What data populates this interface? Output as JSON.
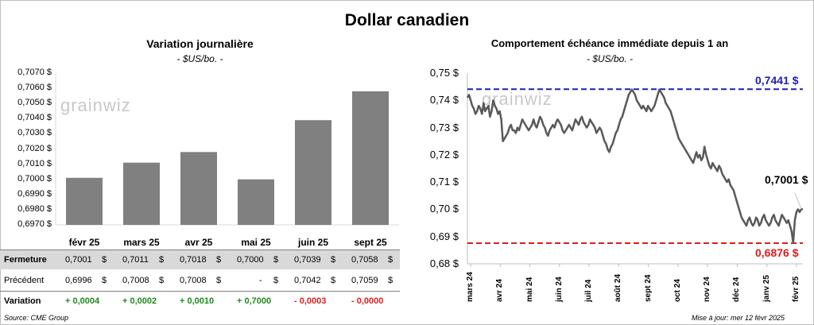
{
  "title": "Dollar canadien",
  "left": {
    "title": "Variation  journalière",
    "unit": "- $US/bo. -",
    "watermark": "grainwiz",
    "y_ticks": [
      "0,7070 $",
      "0,7060 $",
      "0,7050 $",
      "0,7040 $",
      "0,7030 $",
      "0,7020 $",
      "0,7010 $",
      "0,7000 $",
      "0,6990 $",
      "0,6980 $",
      "0,6970 $"
    ],
    "table": {
      "row_labels": [
        "Fermeture",
        "Précédent",
        "Variation"
      ],
      "fermeture": [
        "0,7001",
        "0,7011",
        "0,7018",
        "0,7000",
        "0,7039",
        "0,7058"
      ],
      "precedent": [
        "0,6996",
        "0,7008",
        "0,7008",
        "-",
        "0,7042",
        "0,7059"
      ],
      "variation": [
        "+ 0,0004",
        "+ 0,0002",
        "+ 0,0010",
        "+ 0,7000",
        "- 0,0003",
        "- 0,0000"
      ],
      "currency": "$"
    },
    "source": "Source: CME Group"
  },
  "right": {
    "title": "Comportement échéance immédiate depuis 1 an",
    "unit": "- $US/bo. -",
    "watermark": "grainwiz",
    "y_ticks": [
      "0,75 $",
      "0,74 $",
      "0,73 $",
      "0,72 $",
      "0,71 $",
      "0,70 $",
      "0,69 $",
      "0,68 $"
    ],
    "x_ticks": [
      "mars 24",
      "avr 24",
      "mai 24",
      "juin 24",
      "juil 24",
      "août 24",
      "sept 24",
      "oct 24",
      "nov 24",
      "déc 24",
      "janv 25",
      "févr 25"
    ],
    "high_label": "0,7441 $",
    "low_label": "0,6876 $",
    "last_label": "0,7001 $",
    "updated": "Mise à jour: mer 12 févr 2025"
  },
  "chart_data": [
    {
      "type": "bar",
      "title": "Variation  journalière",
      "categories": [
        "févr 25",
        "mars 25",
        "avr 25",
        "mai 25",
        "juin 25",
        "sept 25"
      ],
      "values": [
        0.7001,
        0.7011,
        0.7018,
        0.7,
        0.7039,
        0.7058
      ],
      "ylim": [
        0.697,
        0.707
      ],
      "color": "#808080"
    },
    {
      "type": "line",
      "title": "Comportement échéance immédiate depuis 1 an",
      "ylim": [
        0.68,
        0.75
      ],
      "reference_lines": [
        {
          "value": 0.7441,
          "color": "#1f1fb4"
        },
        {
          "value": 0.6876,
          "color": "#e01b1b"
        }
      ],
      "color": "#595959",
      "series": [
        {
          "values": [
            0.741,
            0.742,
            0.74,
            0.738,
            0.737,
            0.735,
            0.736,
            0.738,
            0.737,
            0.735,
            0.739,
            0.736,
            0.737,
            0.738,
            0.734,
            0.736,
            0.74,
            0.738,
            0.737,
            0.735,
            0.736,
            0.733,
            0.725,
            0.726,
            0.727,
            0.728,
            0.73,
            0.731,
            0.729,
            0.729,
            0.728,
            0.73,
            0.729,
            0.731,
            0.733,
            0.732,
            0.731,
            0.73,
            0.729,
            0.73,
            0.731,
            0.733,
            0.731,
            0.73,
            0.732,
            0.734,
            0.733,
            0.731,
            0.73,
            0.728,
            0.727,
            0.729,
            0.73,
            0.731,
            0.73,
            0.732,
            0.733,
            0.732,
            0.731,
            0.729,
            0.728,
            0.729,
            0.73,
            0.731,
            0.73,
            0.729,
            0.731,
            0.733,
            0.732,
            0.731,
            0.733,
            0.734,
            0.732,
            0.731,
            0.73,
            0.731,
            0.733,
            0.732,
            0.731,
            0.73,
            0.728,
            0.729,
            0.73,
            0.729,
            0.727,
            0.725,
            0.724,
            0.722,
            0.721,
            0.723,
            0.724,
            0.726,
            0.728,
            0.729,
            0.731,
            0.733,
            0.734,
            0.736,
            0.738,
            0.74,
            0.742,
            0.743,
            0.744,
            0.743,
            0.742,
            0.74,
            0.739,
            0.738,
            0.737,
            0.738,
            0.737,
            0.736,
            0.738,
            0.737,
            0.736,
            0.737,
            0.738,
            0.74,
            0.742,
            0.744,
            0.743,
            0.742,
            0.741,
            0.739,
            0.738,
            0.737,
            0.736,
            0.734,
            0.732,
            0.73,
            0.728,
            0.726,
            0.725,
            0.724,
            0.723,
            0.722,
            0.721,
            0.72,
            0.719,
            0.718,
            0.717,
            0.719,
            0.721,
            0.719,
            0.72,
            0.718,
            0.719,
            0.723,
            0.72,
            0.718,
            0.716,
            0.715,
            0.717,
            0.716,
            0.715,
            0.714,
            0.716,
            0.715,
            0.713,
            0.712,
            0.711,
            0.71,
            0.711,
            0.709,
            0.708,
            0.707,
            0.705,
            0.703,
            0.701,
            0.699,
            0.697,
            0.696,
            0.695,
            0.694,
            0.696,
            0.697,
            0.695,
            0.694,
            0.695,
            0.697,
            0.696,
            0.694,
            0.695,
            0.697,
            0.698,
            0.696,
            0.695,
            0.694,
            0.695,
            0.697,
            0.698,
            0.696,
            0.695,
            0.694,
            0.696,
            0.698,
            0.697,
            0.696,
            0.695,
            0.696,
            0.694,
            0.692,
            0.6876,
            0.696,
            0.699,
            0.7,
            0.699,
            0.7,
            0.7001
          ]
        }
      ]
    }
  ]
}
